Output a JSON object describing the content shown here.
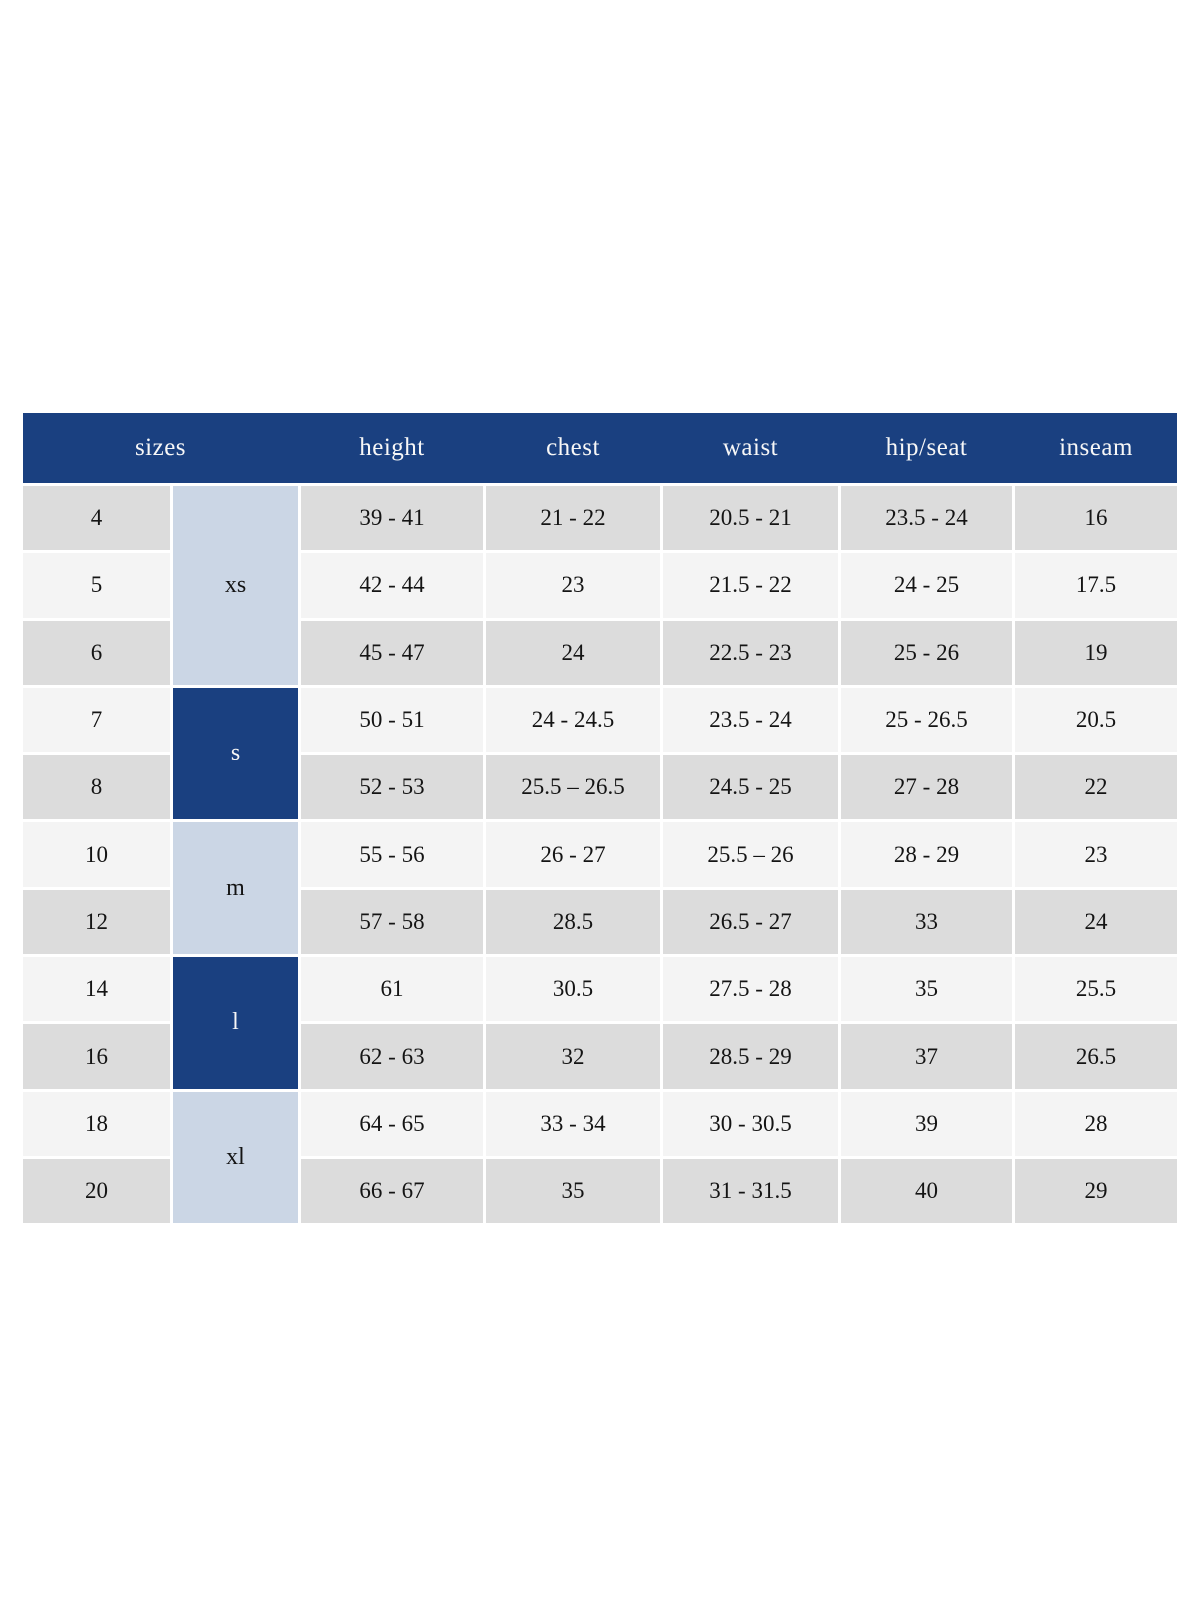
{
  "colors": {
    "header_bg": "#1a4080",
    "header_text": "#f7f7f7",
    "group_light_bg": "#cbd6e5",
    "group_dark_bg": "#1a4080",
    "row_gray_bg": "#dcdcdc",
    "row_white_bg": "#f4f4f4",
    "cell_text": "#141414",
    "page_bg": "#ffffff"
  },
  "chart_data": {
    "type": "table",
    "title": "",
    "columns": [
      "sizes",
      "height",
      "chest",
      "waist",
      "hip/seat",
      "inseam"
    ],
    "layout": {
      "header_style": "dark-blue bar, white serif text",
      "row_striping": "alternating gray / off-white",
      "size_group_column": "merged cells alternating light-blue / dark-blue"
    },
    "size_groups": [
      {
        "label": "xs",
        "sizes": [
          "4",
          "5",
          "6"
        ],
        "style": "light"
      },
      {
        "label": "s",
        "sizes": [
          "7",
          "8"
        ],
        "style": "dark"
      },
      {
        "label": "m",
        "sizes": [
          "10",
          "12"
        ],
        "style": "light"
      },
      {
        "label": "l",
        "sizes": [
          "14",
          "16"
        ],
        "style": "dark"
      },
      {
        "label": "xl",
        "sizes": [
          "18",
          "20"
        ],
        "style": "light"
      }
    ],
    "rows": [
      {
        "size": "4",
        "group": "xs",
        "height": "39 - 41",
        "chest": "21 - 22",
        "waist": "20.5 - 21",
        "hip_seat": "23.5 - 24",
        "inseam": "16"
      },
      {
        "size": "5",
        "group": "xs",
        "height": "42 - 44",
        "chest": "23",
        "waist": "21.5 - 22",
        "hip_seat": "24 - 25",
        "inseam": "17.5"
      },
      {
        "size": "6",
        "group": "xs",
        "height": "45 - 47",
        "chest": "24",
        "waist": "22.5 - 23",
        "hip_seat": "25 - 26",
        "inseam": "19"
      },
      {
        "size": "7",
        "group": "s",
        "height": "50 - 51",
        "chest": "24 - 24.5",
        "waist": "23.5 - 24",
        "hip_seat": "25 - 26.5",
        "inseam": "20.5"
      },
      {
        "size": "8",
        "group": "s",
        "height": "52 - 53",
        "chest": "25.5 – 26.5",
        "waist": "24.5 - 25",
        "hip_seat": "27 - 28",
        "inseam": "22"
      },
      {
        "size": "10",
        "group": "m",
        "height": "55 - 56",
        "chest": "26 - 27",
        "waist": "25.5 – 26",
        "hip_seat": "28 - 29",
        "inseam": "23"
      },
      {
        "size": "12",
        "group": "m",
        "height": "57 - 58",
        "chest": "28.5",
        "waist": "26.5 - 27",
        "hip_seat": "33",
        "inseam": "24"
      },
      {
        "size": "14",
        "group": "l",
        "height": "61",
        "chest": "30.5",
        "waist": "27.5 - 28",
        "hip_seat": "35",
        "inseam": "25.5"
      },
      {
        "size": "16",
        "group": "l",
        "height": "62 - 63",
        "chest": "32",
        "waist": "28.5 - 29",
        "hip_seat": "37",
        "inseam": "26.5"
      },
      {
        "size": "18",
        "group": "xl",
        "height": "64 - 65",
        "chest": "33 - 34",
        "waist": "30 - 30.5",
        "hip_seat": "39",
        "inseam": "28"
      },
      {
        "size": "20",
        "group": "xl",
        "height": "66 - 67",
        "chest": "35",
        "waist": "31 - 31.5",
        "hip_seat": "40",
        "inseam": "29"
      }
    ]
  },
  "header": {
    "sizes": "sizes",
    "height": "height",
    "chest": "chest",
    "waist": "waist",
    "hip_seat": "hip/seat",
    "inseam": "inseam"
  },
  "groups": {
    "xs": "xs",
    "s": "s",
    "m": "m",
    "l": "l",
    "xl": "xl"
  }
}
